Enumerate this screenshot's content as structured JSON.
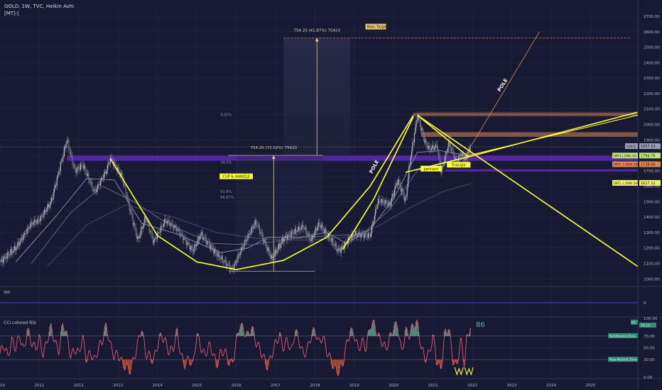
{
  "header": {
    "title": "GOLD, 1W, TVC, Heikin Ashi",
    "indicator_tag": "[MT]-["
  },
  "colors": {
    "background": "#171a32",
    "grid": "#23274a",
    "candles": "#8f8f9a",
    "yellow": "#ffff3a",
    "purple_zone": "#6a2cc8",
    "orange_zone": "#d9875a",
    "rsi_line": "#e05a72",
    "rsi_above": "#63b89a",
    "rsi_below": "#b9542c"
  },
  "chart_data": [
    {
      "type": "line",
      "name": "price-panel",
      "title": "GOLD, 1W, TVC, Heikin Ashi",
      "y_ticks": [
        1000,
        1100,
        1200,
        1300,
        1400,
        1500,
        1600,
        1700,
        1800,
        1900,
        2000,
        2100,
        2200,
        2300,
        2400,
        2500,
        2600,
        2700
      ],
      "ylim": [
        960,
        2760
      ],
      "x_ticks": [
        "2010",
        "2011",
        "2012",
        "2013",
        "2014",
        "2015",
        "2016",
        "2017",
        "2018",
        "2019",
        "2020",
        "2021",
        "2022",
        "2023",
        "2024",
        "2025"
      ],
      "xlim": [
        2010.0,
        2026.2
      ],
      "price_path": [
        [
          2010.0,
          1110
        ],
        [
          2010.4,
          1200
        ],
        [
          2010.8,
          1360
        ],
        [
          2011.0,
          1380
        ],
        [
          2011.3,
          1500
        ],
        [
          2011.6,
          1800
        ],
        [
          2011.7,
          1900
        ],
        [
          2011.9,
          1700
        ],
        [
          2012.1,
          1740
        ],
        [
          2012.4,
          1560
        ],
        [
          2012.7,
          1700
        ],
        [
          2012.8,
          1780
        ],
        [
          2013.1,
          1660
        ],
        [
          2013.3,
          1450
        ],
        [
          2013.5,
          1250
        ],
        [
          2013.7,
          1400
        ],
        [
          2013.9,
          1240
        ],
        [
          2014.2,
          1380
        ],
        [
          2014.5,
          1320
        ],
        [
          2014.9,
          1180
        ],
        [
          2015.1,
          1290
        ],
        [
          2015.5,
          1160
        ],
        [
          2015.9,
          1060
        ],
        [
          2016.2,
          1230
        ],
        [
          2016.5,
          1370
        ],
        [
          2016.9,
          1130
        ],
        [
          2017.2,
          1260
        ],
        [
          2017.7,
          1340
        ],
        [
          2017.9,
          1250
        ],
        [
          2018.1,
          1360
        ],
        [
          2018.6,
          1180
        ],
        [
          2019.0,
          1290
        ],
        [
          2019.4,
          1280
        ],
        [
          2019.6,
          1510
        ],
        [
          2019.9,
          1480
        ],
        [
          2020.1,
          1640
        ],
        [
          2020.3,
          1500
        ],
        [
          2020.4,
          1740
        ],
        [
          2020.6,
          2060
        ],
        [
          2020.8,
          1880
        ],
        [
          2020.9,
          1840
        ],
        [
          2021.1,
          1860
        ],
        [
          2021.2,
          1690
        ],
        [
          2021.4,
          1880
        ],
        [
          2021.6,
          1750
        ],
        [
          2021.7,
          1810
        ],
        [
          2021.8,
          1770
        ],
        [
          2021.95,
          1850
        ]
      ],
      "ema_50": [
        [
          2010.4,
          1110
        ],
        [
          2011.4,
          1400
        ],
        [
          2012.2,
          1650
        ],
        [
          2012.9,
          1640
        ],
        [
          2013.6,
          1360
        ],
        [
          2014.5,
          1290
        ],
        [
          2015.6,
          1170
        ],
        [
          2016.3,
          1200
        ],
        [
          2016.8,
          1270
        ],
        [
          2017.6,
          1270
        ],
        [
          2018.3,
          1300
        ],
        [
          2018.8,
          1230
        ],
        [
          2019.4,
          1320
        ],
        [
          2020.0,
          1520
        ],
        [
          2020.6,
          1820
        ],
        [
          2021.2,
          1830
        ],
        [
          2021.95,
          1794
        ]
      ],
      "ema_100": [
        [
          2010.8,
          1100
        ],
        [
          2011.8,
          1430
        ],
        [
          2012.6,
          1600
        ],
        [
          2013.4,
          1500
        ],
        [
          2014.3,
          1350
        ],
        [
          2015.4,
          1230
        ],
        [
          2016.4,
          1220
        ],
        [
          2017.4,
          1260
        ],
        [
          2018.4,
          1280
        ],
        [
          2019.2,
          1290
        ],
        [
          2019.9,
          1450
        ],
        [
          2020.6,
          1700
        ],
        [
          2021.3,
          1760
        ],
        [
          2021.95,
          1738
        ]
      ],
      "ema_200": [
        [
          2011.2,
          1080
        ],
        [
          2012.2,
          1350
        ],
        [
          2013.2,
          1480
        ],
        [
          2014.4,
          1400
        ],
        [
          2015.5,
          1300
        ],
        [
          2016.6,
          1260
        ],
        [
          2017.8,
          1250
        ],
        [
          2018.8,
          1270
        ],
        [
          2019.6,
          1340
        ],
        [
          2020.4,
          1460
        ],
        [
          2021.2,
          1560
        ],
        [
          2021.95,
          1617
        ]
      ],
      "series_labels": [
        {
          "text": "[MT]-[ EMA 50",
          "value": "1794.76"
        },
        {
          "text": "[MT] -[ EMA 100",
          "value": "1738.56"
        },
        {
          "text": "[MT] -[ EMA 200",
          "value": "1617.12"
        }
      ],
      "price_label": {
        "text": "GOLD",
        "value": "1857.53"
      },
      "last_price_line": 1855,
      "fib_levels": [
        {
          "label": "0.00%",
          "value": 2065
        },
        {
          "label": "38.2%",
          "value": 1755
        },
        {
          "label": "50.00%",
          "value": 1660
        },
        {
          "label": "61.8%",
          "value": 1565
        },
        {
          "label": "66.67%",
          "value": 1530
        }
      ],
      "measurements": [
        {
          "label": "754.20 (41.87%) 75420",
          "x": 2018.05,
          "from": 1800,
          "to": 2560,
          "box_x": [
            2017.2,
            2018.9
          ]
        },
        {
          "label": "754.20 (72.02%) 75420",
          "x": 2016.95,
          "from": 1050,
          "to": 1800,
          "box_x": [
            2016.0,
            2018.2
          ]
        },
        {
          "label": "Main Target",
          "x": 2019.3,
          "value": 2560
        }
      ],
      "annotations": [
        {
          "text": "CUP & HANDLE",
          "x": 2016.0,
          "y": 1655
        },
        {
          "text": "POLE",
          "x": 2019.45,
          "y": 1680
        },
        {
          "text": "POLE",
          "x": 2022.7,
          "y": 2210
        },
        {
          "text": "pennant",
          "x": 2020.95,
          "y": 1705
        },
        {
          "text": "Triangle",
          "x": 2021.65,
          "y": 1730
        }
      ],
      "zones": [
        {
          "name": "purple-support",
          "from": 1765,
          "to": 1798,
          "x": [
            2011.7,
            2026.2
          ]
        },
        {
          "name": "purple-support-right",
          "from": 1695,
          "to": 1710,
          "x": [
            2021.3,
            2026.2
          ]
        },
        {
          "name": "orange-resistance-1",
          "from": 1920,
          "to": 1950,
          "x": [
            2020.7,
            2026.2
          ]
        },
        {
          "name": "orange-resistance-2",
          "from": 2055,
          "to": 2075,
          "x": [
            2020.5,
            2026.2
          ]
        }
      ],
      "drawings": {
        "cup": [
          [
            2012.8,
            1780
          ],
          [
            2014.0,
            1280
          ],
          [
            2015.0,
            1110
          ],
          [
            2016.0,
            1060
          ],
          [
            2017.2,
            1120
          ],
          [
            2018.3,
            1270
          ],
          [
            2019.4,
            1600
          ],
          [
            2020.5,
            2060
          ]
        ],
        "pole": [
          [
            2018.7,
            1190
          ],
          [
            2019.5,
            1520
          ],
          [
            2020.5,
            2050
          ]
        ],
        "triangle_upper": [
          [
            2020.6,
            2060
          ],
          [
            2021.9,
            1790
          ]
        ],
        "triangle_lower": [
          [
            2020.3,
            1690
          ],
          [
            2021.9,
            1790
          ]
        ],
        "rising_line": [
          [
            2021.9,
            1790
          ],
          [
            2026.2,
            2080
          ]
        ],
        "rising_line_2": [
          [
            2021.9,
            1800
          ],
          [
            2026.2,
            2060
          ]
        ],
        "falling_line": [
          [
            2020.6,
            2060
          ],
          [
            2026.2,
            1080
          ]
        ],
        "target_line": [
          [
            2021.8,
            1790
          ],
          [
            2023.7,
            2600
          ]
        ],
        "orange_dashed": [
          [
            2020.6,
            2080
          ],
          [
            2026.2,
            2080
          ]
        ]
      }
    },
    {
      "type": "area",
      "name": "vol-panel",
      "title": "Vol",
      "y_ticks": [
        0
      ],
      "values": []
    },
    {
      "type": "line",
      "name": "rsi-panel",
      "title": "CCI colored RSI",
      "ylim": [
        0,
        100
      ],
      "y_ticks": [
        0.0,
        30.0,
        50.0,
        70.0,
        100.0
      ],
      "levels": [
        {
          "label": "Bull-Neutral Zone",
          "value": 70
        },
        {
          "label": "Bear-Neutral Zone",
          "value": 30
        }
      ],
      "current_values": [
        "93",
        "75.13"
      ],
      "current_label": "86",
      "rsi_points": [
        [
          2010.0,
          40
        ],
        [
          2010.1,
          55
        ],
        [
          2010.2,
          35
        ],
        [
          2010.3,
          62
        ],
        [
          2010.4,
          50
        ],
        [
          2010.5,
          72
        ],
        [
          2010.6,
          44
        ],
        [
          2010.7,
          80
        ],
        [
          2010.8,
          60
        ],
        [
          2010.9,
          48
        ],
        [
          2011.0,
          66
        ],
        [
          2011.1,
          38
        ],
        [
          2011.2,
          64
        ],
        [
          2011.3,
          85
        ],
        [
          2011.4,
          58
        ],
        [
          2011.5,
          45
        ],
        [
          2011.6,
          92
        ],
        [
          2011.7,
          70
        ],
        [
          2011.8,
          35
        ],
        [
          2011.9,
          48
        ],
        [
          2012.0,
          40
        ],
        [
          2012.1,
          68
        ],
        [
          2012.2,
          30
        ],
        [
          2012.3,
          42
        ],
        [
          2012.4,
          28
        ],
        [
          2012.5,
          50
        ],
        [
          2012.6,
          62
        ],
        [
          2012.7,
          88
        ],
        [
          2012.8,
          55
        ],
        [
          2012.9,
          36
        ],
        [
          2013.0,
          40
        ],
        [
          2013.1,
          25
        ],
        [
          2013.2,
          18
        ],
        [
          2013.3,
          12
        ],
        [
          2013.4,
          30
        ],
        [
          2013.5,
          58
        ],
        [
          2013.6,
          84
        ],
        [
          2013.7,
          40
        ],
        [
          2013.8,
          36
        ],
        [
          2013.9,
          28
        ],
        [
          2014.0,
          55
        ],
        [
          2014.1,
          72
        ],
        [
          2014.2,
          60
        ],
        [
          2014.3,
          42
        ],
        [
          2014.4,
          50
        ],
        [
          2014.5,
          78
        ],
        [
          2014.6,
          35
        ],
        [
          2014.7,
          22
        ],
        [
          2014.8,
          32
        ],
        [
          2014.9,
          20
        ],
        [
          2015.0,
          74
        ],
        [
          2015.1,
          52
        ],
        [
          2015.2,
          36
        ],
        [
          2015.3,
          54
        ],
        [
          2015.4,
          44
        ],
        [
          2015.5,
          20
        ],
        [
          2015.6,
          40
        ],
        [
          2015.7,
          46
        ],
        [
          2015.8,
          28
        ],
        [
          2015.9,
          22
        ],
        [
          2016.0,
          60
        ],
        [
          2016.1,
          90
        ],
        [
          2016.2,
          78
        ],
        [
          2016.3,
          70
        ],
        [
          2016.4,
          84
        ],
        [
          2016.5,
          60
        ],
        [
          2016.6,
          48
        ],
        [
          2016.7,
          32
        ],
        [
          2016.8,
          18
        ],
        [
          2016.9,
          38
        ],
        [
          2017.0,
          58
        ],
        [
          2017.1,
          72
        ],
        [
          2017.2,
          50
        ],
        [
          2017.3,
          64
        ],
        [
          2017.4,
          42
        ],
        [
          2017.5,
          80
        ],
        [
          2017.6,
          62
        ],
        [
          2017.7,
          38
        ],
        [
          2017.8,
          46
        ],
        [
          2017.9,
          70
        ],
        [
          2018.0,
          80
        ],
        [
          2018.1,
          58
        ],
        [
          2018.2,
          70
        ],
        [
          2018.3,
          44
        ],
        [
          2018.4,
          30
        ],
        [
          2018.5,
          15
        ],
        [
          2018.6,
          10
        ],
        [
          2018.7,
          22
        ],
        [
          2018.8,
          56
        ],
        [
          2018.9,
          78
        ],
        [
          2019.0,
          72
        ],
        [
          2019.1,
          48
        ],
        [
          2019.2,
          60
        ],
        [
          2019.3,
          50
        ],
        [
          2019.4,
          86
        ],
        [
          2019.5,
          92
        ],
        [
          2019.6,
          70
        ],
        [
          2019.7,
          60
        ],
        [
          2019.8,
          48
        ],
        [
          2019.9,
          66
        ],
        [
          2020.0,
          84
        ],
        [
          2020.1,
          90
        ],
        [
          2020.2,
          40
        ],
        [
          2020.3,
          78
        ],
        [
          2020.4,
          72
        ],
        [
          2020.5,
          88
        ],
        [
          2020.6,
          92
        ],
        [
          2020.7,
          50
        ],
        [
          2020.8,
          32
        ],
        [
          2020.9,
          40
        ],
        [
          2021.0,
          70
        ],
        [
          2021.1,
          26
        ],
        [
          2021.2,
          14
        ],
        [
          2021.3,
          74
        ],
        [
          2021.4,
          84
        ],
        [
          2021.5,
          30
        ],
        [
          2021.6,
          18
        ],
        [
          2021.7,
          64
        ],
        [
          2021.8,
          22
        ],
        [
          2021.85,
          62
        ],
        [
          2021.95,
          86
        ]
      ]
    }
  ]
}
